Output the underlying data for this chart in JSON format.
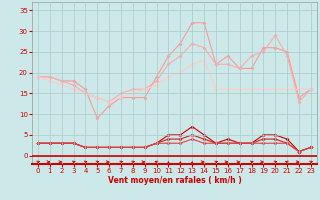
{
  "x": [
    0,
    1,
    2,
    3,
    4,
    5,
    6,
    7,
    8,
    9,
    10,
    11,
    12,
    13,
    14,
    15,
    16,
    17,
    18,
    19,
    20,
    21,
    22,
    23
  ],
  "line1": [
    19,
    19,
    18,
    18,
    16,
    9,
    12,
    14,
    14,
    14,
    19,
    24,
    27,
    32,
    32,
    22,
    24,
    21,
    21,
    26,
    26,
    25,
    14,
    16
  ],
  "line2": [
    19,
    19,
    18,
    17,
    15,
    14,
    13,
    15,
    16,
    16,
    18,
    22,
    24,
    27,
    26,
    22,
    22,
    21,
    24,
    25,
    29,
    24,
    13,
    16
  ],
  "line3": [
    19,
    18,
    17,
    16,
    15,
    14,
    13,
    14,
    15,
    16,
    17,
    19,
    20,
    22,
    23,
    16,
    16,
    16,
    16,
    16,
    16,
    16,
    16,
    16
  ],
  "line4": [
    3,
    3,
    3,
    3,
    2,
    2,
    2,
    2,
    2,
    2,
    3,
    5,
    5,
    7,
    5,
    3,
    4,
    3,
    3,
    5,
    5,
    4,
    1,
    2
  ],
  "line5": [
    3,
    3,
    3,
    3,
    2,
    2,
    2,
    2,
    2,
    2,
    3,
    4,
    4,
    5,
    4,
    3,
    3,
    3,
    3,
    4,
    4,
    3,
    1,
    2
  ],
  "line6": [
    3,
    3,
    3,
    3,
    2,
    2,
    2,
    2,
    2,
    2,
    3,
    3,
    3,
    4,
    3,
    3,
    3,
    3,
    3,
    3,
    3,
    3,
    1,
    2
  ],
  "arrows_angle": [
    45,
    0,
    0,
    45,
    45,
    45,
    0,
    45,
    45,
    0,
    135,
    90,
    90,
    90,
    0,
    45,
    0,
    0,
    45,
    0,
    45,
    135,
    0,
    45
  ],
  "bg_color": "#cce8e8",
  "grid_color": "#aacccc",
  "line1_color": "#ff9999",
  "line2_color": "#ffaaaa",
  "line3_color": "#ffcccc",
  "line4_color": "#cc0000",
  "line5_color": "#cc2222",
  "line6_color": "#dd4444",
  "xlabel": "Vent moyen/en rafales ( km/h )",
  "xlabel_color": "#cc0000",
  "tick_color": "#cc0000",
  "yticks": [
    0,
    5,
    10,
    15,
    20,
    25,
    30,
    35
  ],
  "ylim": [
    -2,
    37
  ],
  "xlim": [
    -0.5,
    23.5
  ],
  "xticks": [
    0,
    1,
    2,
    3,
    4,
    5,
    6,
    7,
    8,
    9,
    10,
    11,
    12,
    13,
    14,
    15,
    16,
    17,
    18,
    19,
    20,
    21,
    22,
    23
  ],
  "bottom_line_y": -1.5
}
